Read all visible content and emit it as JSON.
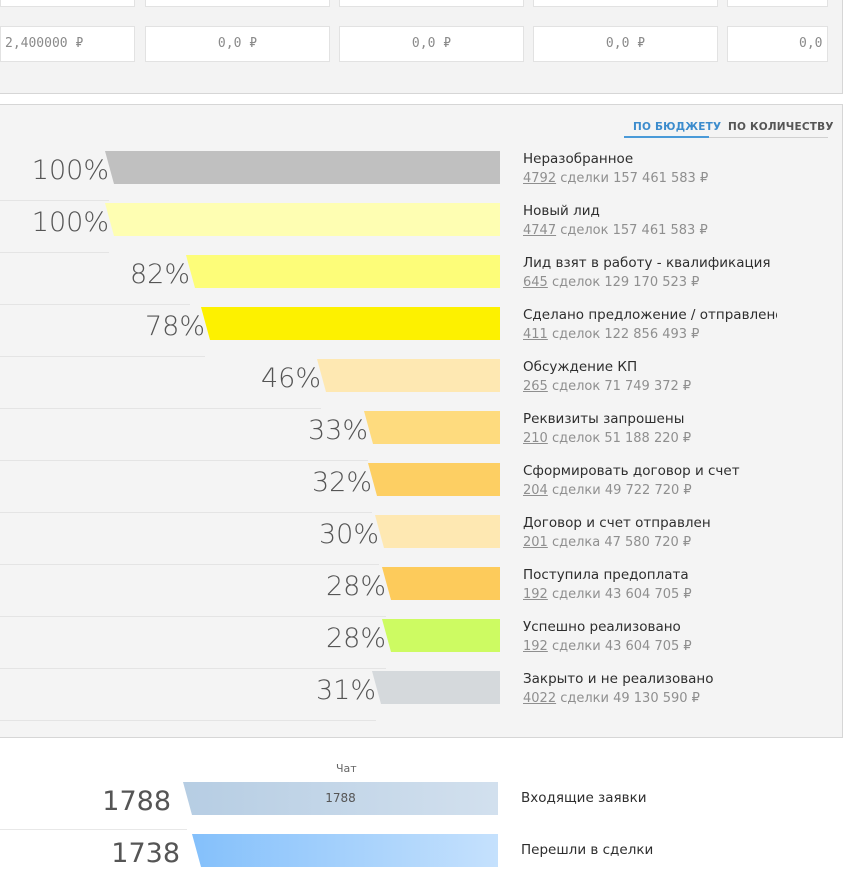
{
  "values_row": {
    "boxes": [
      "2,400000 ₽",
      "0,0 ₽",
      "0,0 ₽",
      "0,0 ₽",
      "0,0"
    ]
  },
  "tabs": {
    "budget": "ПО БЮДЖЕТУ",
    "count": "ПО КОЛИЧЕСТВУ",
    "active": "budget"
  },
  "funnel": {
    "stages": [
      {
        "percent": "100%",
        "fill": 1.0,
        "color": "#c0c0c0",
        "name": "Неразобранное",
        "count": "4792",
        "summary": " сделки 157 461 583 ₽"
      },
      {
        "percent": "100%",
        "fill": 1.0,
        "color": "#fefeb2",
        "name": "Новый лид",
        "count": "4747",
        "summary": " сделок 157 461 583 ₽"
      },
      {
        "percent": "82%",
        "fill": 0.82,
        "color": "#fdfd79",
        "name": "Лид взят в работу - квалификация",
        "count": "645",
        "summary": " сделок 129 170 523 ₽"
      },
      {
        "percent": "78%",
        "fill": 0.78,
        "color": "#fdf100",
        "name": "Сделано предложение / отправлено КП",
        "count": "411",
        "summary": " сделок 122 856 493 ₽"
      },
      {
        "percent": "46%",
        "fill": 0.46,
        "color": "#fee8b2",
        "name": "Обсуждение КП",
        "count": "265",
        "summary": " сделок 71 749 372 ₽"
      },
      {
        "percent": "33%",
        "fill": 0.33,
        "color": "#fedb7e",
        "name": "Реквизиты запрошены",
        "count": "210",
        "summary": " сделок 51 188 220 ₽"
      },
      {
        "percent": "32%",
        "fill": 0.32,
        "color": "#fdcf63",
        "name": "Сформировать договор и счет",
        "count": "204",
        "summary": " сделки 49 722 720 ₽"
      },
      {
        "percent": "30%",
        "fill": 0.3,
        "color": "#fee8b2",
        "name": "Договор и счет отправлен",
        "count": "201",
        "summary": " сделка 47 580 720 ₽"
      },
      {
        "percent": "28%",
        "fill": 0.28,
        "color": "#fdcb5b",
        "name": "Поступила предоплата",
        "count": "192",
        "summary": " сделки 43 604 705 ₽"
      },
      {
        "percent": "28%",
        "fill": 0.28,
        "color": "#cdfb62",
        "name": "Успешно реализовано",
        "count": "192",
        "summary": " сделки 43 604 705 ₽"
      },
      {
        "percent": "31%",
        "fill": 0.31,
        "color": "#d5d9dc",
        "name": "Закрыто и не реализовано",
        "count": "4022",
        "summary": " сделки 49 130 590 ₽"
      }
    ]
  },
  "sources": {
    "column_label": "Чат",
    "rows": [
      {
        "value": "1788",
        "bar_text": "1788",
        "name": "Входящие заявки",
        "gradient": [
          "#b6cde3",
          "#d2e0ee"
        ]
      },
      {
        "value": "1738",
        "bar_text": "",
        "name": "Перешли в сделки",
        "gradient": [
          "#84c0fb",
          "#c5e1fd"
        ]
      }
    ]
  }
}
